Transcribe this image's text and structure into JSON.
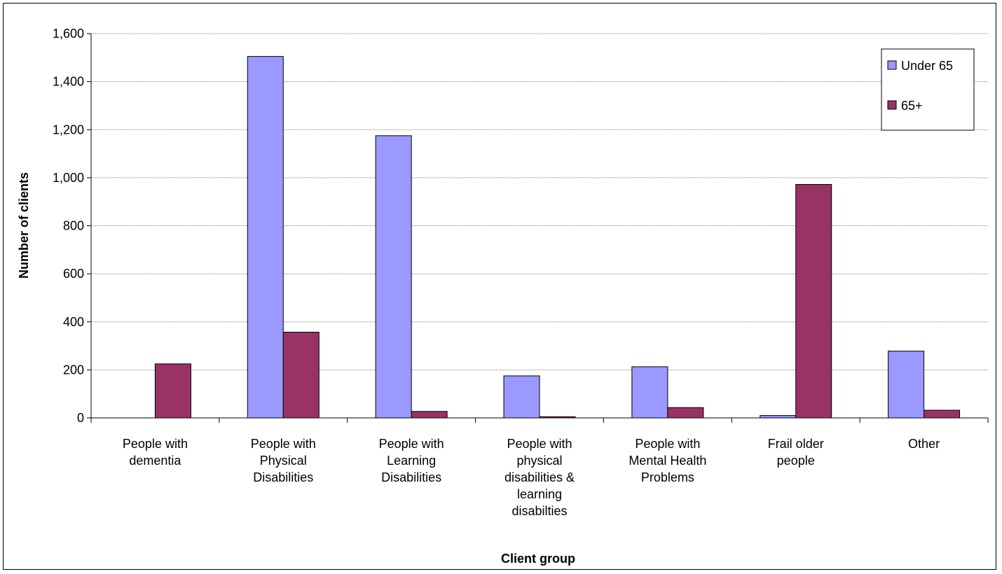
{
  "chart_data": {
    "type": "bar",
    "title": "",
    "xlabel": "Client group",
    "ylabel": "Number of clients",
    "ylim": [
      0,
      1600
    ],
    "yticks": [
      0,
      200,
      400,
      600,
      800,
      1000,
      1200,
      1400,
      1600
    ],
    "ytick_labels": [
      "0",
      "200",
      "400",
      "600",
      "800",
      "1,000",
      "1,200",
      "1,400",
      "1,600"
    ],
    "grid": true,
    "legend_position": "top-right",
    "categories": [
      [
        "People with",
        "dementia"
      ],
      [
        "People with",
        "Physical",
        "Disabilities"
      ],
      [
        "People with",
        "Learning",
        "Disabilities"
      ],
      [
        "People with",
        "physical",
        "disabilities &",
        "learning",
        "disabilties"
      ],
      [
        "People with",
        "Mental Health",
        "Problems"
      ],
      [
        "Frail older",
        "people"
      ],
      [
        "Other"
      ]
    ],
    "series": [
      {
        "name": "Under 65",
        "color": "#9999FF",
        "values": [
          0,
          1505,
          1175,
          175,
          213,
          10,
          278
        ]
      },
      {
        "name": "65+",
        "color": "#993366",
        "values": [
          225,
          357,
          27,
          5,
          43,
          972,
          32
        ]
      }
    ]
  }
}
